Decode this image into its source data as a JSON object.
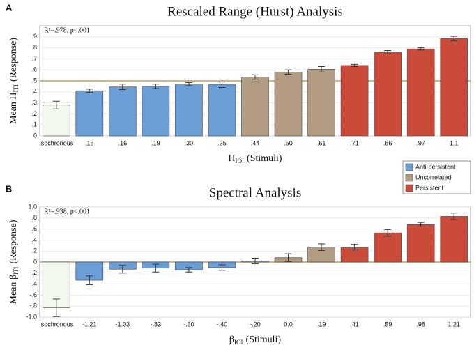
{
  "chart_data": [
    {
      "type": "bar",
      "panel": "A",
      "title": "Rescaled Range (Hurst) Analysis",
      "y_label": "Mean H",
      "y_label_sub": "ITI",
      "y_label_suffix": "(Response)",
      "x_label": "H",
      "x_label_sub": "IOI",
      "x_label_suffix": "(Stimuli)",
      "annotation": "R²=.978, p<.001",
      "categories": [
        "Isochronous",
        ".15",
        ".16",
        ".19",
        ".30",
        ".35",
        ".44",
        ".50",
        ".61",
        ".71",
        ".86",
        ".97",
        "1.1"
      ],
      "values": [
        0.28,
        0.41,
        0.445,
        0.45,
        0.47,
        0.465,
        0.535,
        0.58,
        0.605,
        0.64,
        0.76,
        0.79,
        0.885
      ],
      "errors": [
        0.035,
        0.015,
        0.025,
        0.02,
        0.015,
        0.025,
        0.02,
        0.02,
        0.025,
        0.01,
        0.015,
        0.01,
        0.02
      ],
      "colors": [
        "#f3f8ef",
        "#6b9ed6",
        "#6b9ed6",
        "#6b9ed6",
        "#6b9ed6",
        "#6b9ed6",
        "#b19b83",
        "#b19b83",
        "#b19b83",
        "#cb4b3b",
        "#cb4b3b",
        "#cb4b3b",
        "#cb4b3b"
      ],
      "reference_line": 0.5,
      "reference_color": "#b9a06a",
      "ylim": [
        0,
        1.0
      ],
      "yticks": [
        0,
        {
          "value": 0.1,
          "label": ".1"
        },
        {
          "value": 0.2,
          "label": ".2"
        },
        {
          "value": 0.3,
          "label": ".3"
        },
        {
          "value": 0.4,
          "label": ".4"
        },
        {
          "value": 0.5,
          "label": ".5"
        },
        {
          "value": 0.6,
          "label": ".6"
        },
        {
          "value": 0.7,
          "label": ".7"
        },
        {
          "value": 0.8,
          "label": ".8"
        },
        {
          "value": 0.9,
          "label": ".9"
        }
      ],
      "grid": true,
      "legend": [
        {
          "name": "Anti-persistent",
          "color": "#6b9ed6"
        },
        {
          "name": "Uncorrelated",
          "color": "#b19b83"
        },
        {
          "name": "Persistent",
          "color": "#cb4b3b"
        }
      ]
    },
    {
      "type": "bar",
      "panel": "B",
      "title": "Spectral Analysis",
      "y_label": "Mean β",
      "y_label_sub": "ITI",
      "y_label_suffix": "(Response)",
      "x_label": "β",
      "x_label_sub": "IOI",
      "x_label_suffix": "(Stimuli)",
      "annotation": "R²=.938, p<.001",
      "categories": [
        "Isochronous",
        "-1.21",
        "-1.03",
        "-.83",
        "-.60",
        "-.40",
        "-.20",
        "0.0",
        ".19",
        ".41",
        ".59",
        ".98",
        "1.21"
      ],
      "values": [
        -0.83,
        -0.33,
        -0.13,
        -0.11,
        -0.14,
        -0.1,
        0.02,
        0.08,
        0.27,
        0.27,
        0.53,
        0.68,
        0.83
      ],
      "errors": [
        0.16,
        0.08,
        0.07,
        0.07,
        0.04,
        0.05,
        0.05,
        0.07,
        0.06,
        0.05,
        0.06,
        0.04,
        0.06
      ],
      "colors": [
        "#f3f8ef",
        "#6b9ed6",
        "#6b9ed6",
        "#6b9ed6",
        "#6b9ed6",
        "#6b9ed6",
        "#6b9ed6",
        "#b19b83",
        "#b19b83",
        "#cb4b3b",
        "#cb4b3b",
        "#cb4b3b",
        "#cb4b3b"
      ],
      "reference_line": 0,
      "reference_color": "#b9a06a",
      "ylim": [
        -1.0,
        1.0
      ],
      "yticks": [
        {
          "value": -1.0,
          "label": "-1.0"
        },
        {
          "value": -0.8,
          "label": "-.8"
        },
        {
          "value": -0.6,
          "label": "-.6"
        },
        {
          "value": -0.4,
          "label": "-.4"
        },
        {
          "value": -0.2,
          "label": "-.2"
        },
        0,
        {
          "value": 0.2,
          "label": ".2"
        },
        {
          "value": 0.4,
          "label": ".4"
        },
        {
          "value": 0.6,
          "label": ".6"
        },
        {
          "value": 0.8,
          "label": ".8"
        },
        {
          "value": 1.0,
          "label": "1.0"
        }
      ],
      "grid": true
    }
  ]
}
